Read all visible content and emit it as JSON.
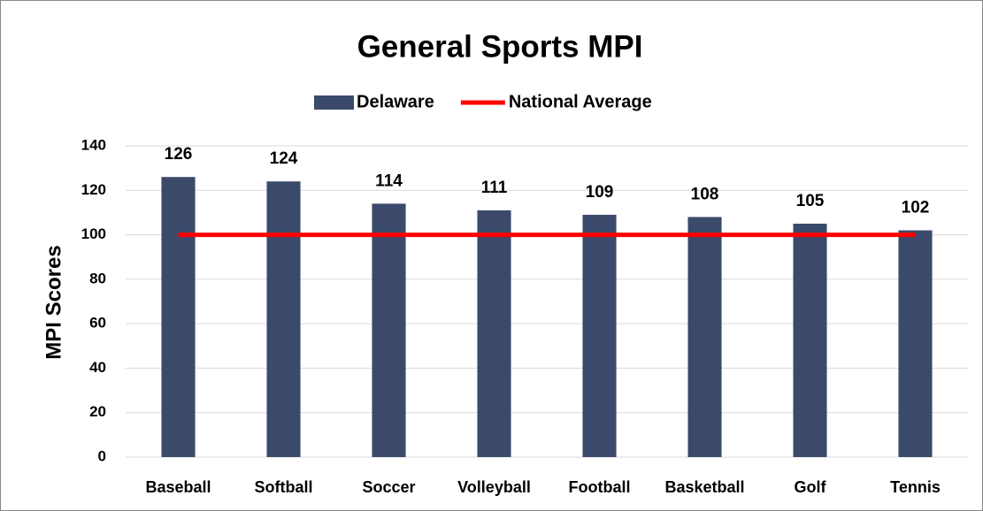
{
  "chart_data": {
    "type": "bar",
    "title": "General Sports MPI",
    "y_label": "MPI Scores",
    "categories": [
      "Baseball",
      "Softball",
      "Soccer",
      "Volleyball",
      "Football",
      "Basketball",
      "Golf",
      "Tennis"
    ],
    "series": [
      {
        "name": "Delaware",
        "type": "bar",
        "color": "#3b4a6b",
        "values": [
          126,
          124,
          114,
          111,
          109,
          108,
          105,
          102
        ]
      },
      {
        "name": "National Average",
        "type": "line",
        "color": "#ff0000",
        "values": [
          100,
          100,
          100,
          100,
          100,
          100,
          100,
          100
        ]
      }
    ],
    "ylim": [
      0,
      140
    ],
    "yticks": [
      0,
      20,
      40,
      60,
      80,
      100,
      120,
      140
    ],
    "grid": true,
    "legend": "top"
  }
}
